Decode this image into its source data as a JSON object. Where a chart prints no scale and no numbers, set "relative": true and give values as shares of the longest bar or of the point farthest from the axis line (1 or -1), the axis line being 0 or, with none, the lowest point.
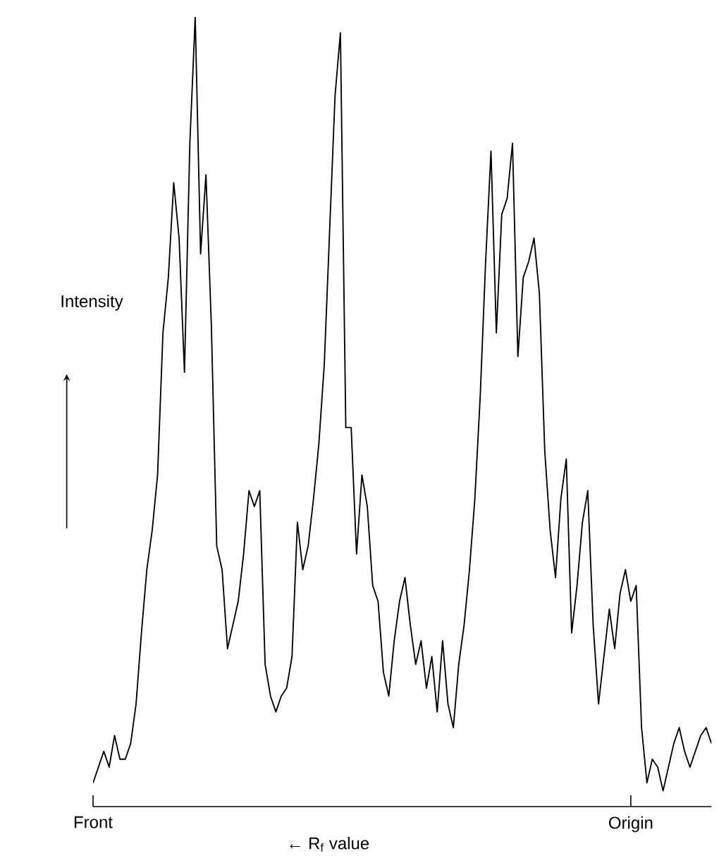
{
  "chart_data": {
    "type": "line",
    "relative": true,
    "xlabel": "← R$_{f}$ value",
    "ylabel": "Intensity",
    "color": "#000000",
    "categories": [
      "Front",
      null,
      null,
      null,
      null,
      null,
      null,
      null,
      null,
      null,
      null,
      null,
      null,
      null,
      null,
      null,
      null,
      null,
      null,
      null,
      null,
      null,
      null,
      null,
      null,
      null,
      null,
      null,
      null,
      null,
      null,
      null,
      null,
      null,
      null,
      null,
      null,
      null,
      null,
      null,
      null,
      null,
      null,
      null,
      null,
      null,
      null,
      null,
      null,
      null,
      null,
      null,
      null,
      null,
      null,
      null,
      null,
      null,
      null,
      null,
      null,
      null,
      null,
      null,
      null,
      null,
      null,
      null,
      null,
      null,
      null,
      null,
      null,
      null,
      null,
      null,
      null,
      null,
      null,
      null,
      null,
      null,
      null,
      null,
      null,
      null,
      null,
      null,
      null,
      null,
      null,
      null,
      null,
      null,
      null,
      null,
      null,
      null,
      null,
      null,
      "Origin",
      null,
      null,
      null,
      null,
      null,
      null,
      null,
      null,
      null,
      null,
      null,
      null,
      null,
      null,
      null
    ],
    "values": [
      0.03,
      0.05,
      0.07,
      0.05,
      0.09,
      0.06,
      0.06,
      0.08,
      0.13,
      0.22,
      0.3,
      0.35,
      0.42,
      0.6,
      0.67,
      0.79,
      0.72,
      0.55,
      0.84,
      1.0,
      0.7,
      0.8,
      0.61,
      0.33,
      0.3,
      0.2,
      0.23,
      0.26,
      0.32,
      0.4,
      0.38,
      0.4,
      0.18,
      0.14,
      0.12,
      0.14,
      0.15,
      0.19,
      0.36,
      0.3,
      0.33,
      0.39,
      0.46,
      0.56,
      0.73,
      0.9,
      0.98,
      0.48,
      0.48,
      0.32,
      0.42,
      0.38,
      0.28,
      0.26,
      0.17,
      0.14,
      0.21,
      0.26,
      0.29,
      0.23,
      0.18,
      0.21,
      0.15,
      0.19,
      0.12,
      0.21,
      0.13,
      0.1,
      0.18,
      0.23,
      0.3,
      0.39,
      0.52,
      0.69,
      0.83,
      0.6,
      0.75,
      0.77,
      0.84,
      0.57,
      0.67,
      0.69,
      0.72,
      0.65,
      0.45,
      0.35,
      0.29,
      0.39,
      0.44,
      0.22,
      0.28,
      0.36,
      0.4,
      0.23,
      0.13,
      0.19,
      0.25,
      0.2,
      0.27,
      0.3,
      0.26,
      0.28,
      0.1,
      0.03,
      0.06,
      0.05,
      0.02,
      0.05,
      0.08,
      0.1,
      0.07,
      0.05,
      0.07,
      0.09,
      0.1,
      0.08
    ]
  }
}
